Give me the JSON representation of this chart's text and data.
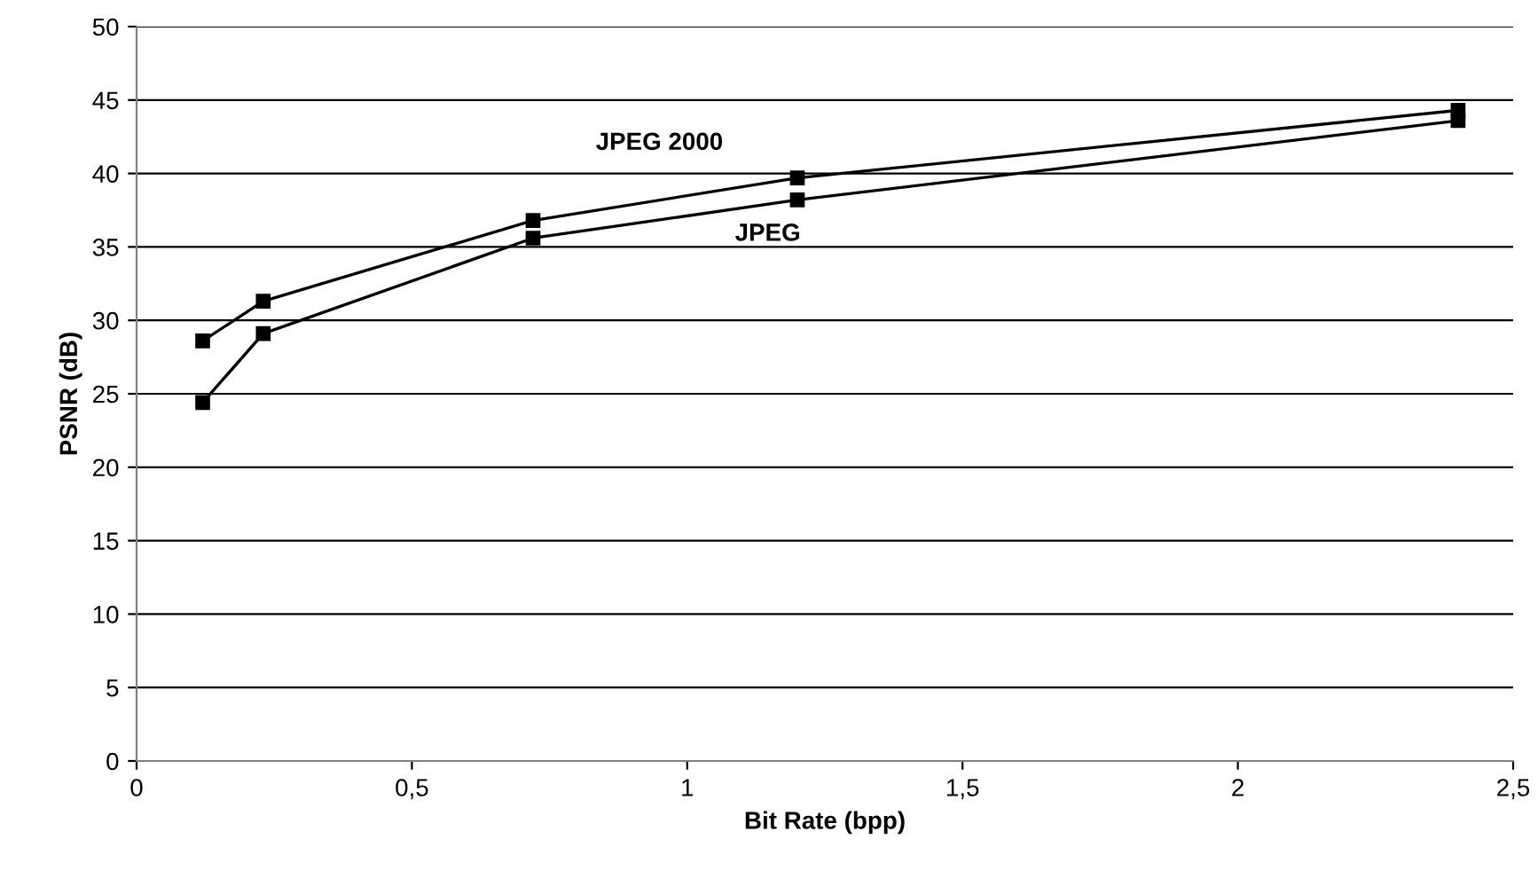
{
  "chart_data": {
    "type": "line",
    "xlabel": "Bit Rate (bpp)",
    "ylabel": "PSNR (dB)",
    "x": [
      0.12,
      0.23,
      0.72,
      1.2,
      2.4
    ],
    "series": [
      {
        "name": "JPEG 2000",
        "color": "#000000",
        "values": [
          28.6,
          31.3,
          36.8,
          39.7,
          44.3
        ]
      },
      {
        "name": "JPEG",
        "color": "#000000",
        "values": [
          24.4,
          29.1,
          35.6,
          38.2,
          43.6
        ]
      }
    ],
    "xlim": [
      0,
      2.5
    ],
    "xticks": [
      {
        "value": 0,
        "label": "0"
      },
      {
        "value": 0.5,
        "label": "0,5"
      },
      {
        "value": 1,
        "label": "1"
      },
      {
        "value": 1.5,
        "label": "1,5"
      },
      {
        "value": 2,
        "label": "2"
      },
      {
        "value": 2.5,
        "label": "2,5"
      }
    ],
    "ylim": [
      0,
      50
    ],
    "yticks": [
      0,
      5,
      10,
      15,
      20,
      25,
      30,
      35,
      40,
      45,
      50
    ],
    "grid": "y",
    "marker": "square",
    "legend": false
  }
}
